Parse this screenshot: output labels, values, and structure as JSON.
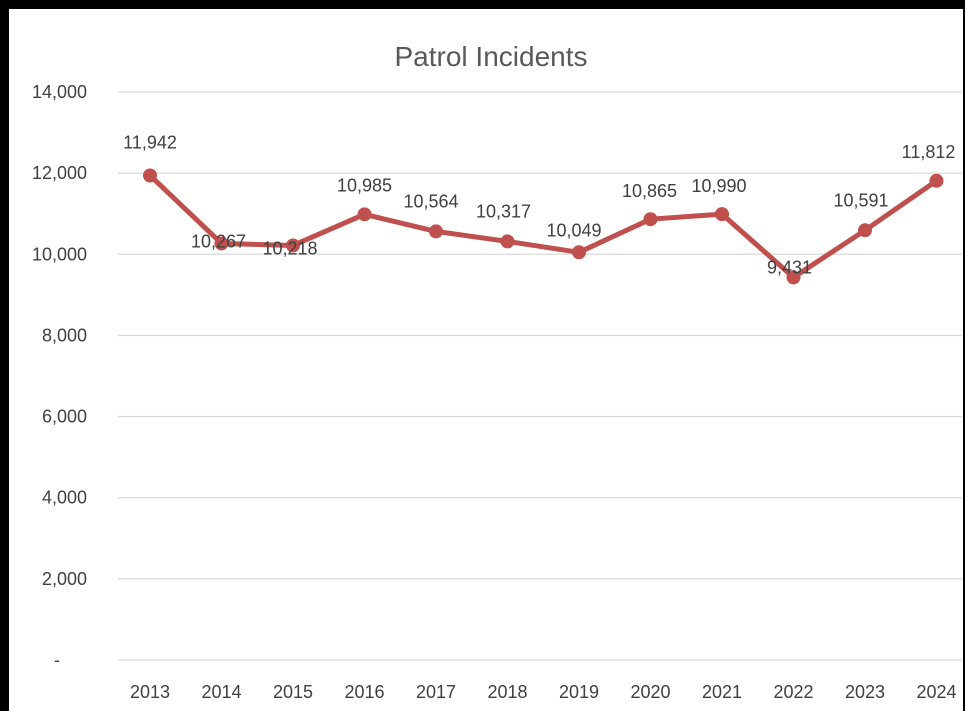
{
  "chart_data": {
    "type": "line",
    "title": "Patrol Incidents",
    "xlabel": "",
    "ylabel": "",
    "categories": [
      "2013",
      "2014",
      "2015",
      "2016",
      "2017",
      "2018",
      "2019",
      "2020",
      "2021",
      "2022",
      "2023",
      "2024"
    ],
    "series": [
      {
        "values": [
          11942,
          10267,
          10218,
          10985,
          10564,
          10317,
          10049,
          10865,
          10990,
          9431,
          10591,
          11812
        ],
        "labels": [
          "11,942",
          "10,267",
          "10,218",
          "10,985",
          "10,564",
          "10,317",
          "10,049",
          "10,865",
          "10,990",
          "9,431",
          "10,591",
          "11,812"
        ],
        "color": "#C0504D"
      }
    ],
    "ylim": [
      0,
      14000
    ],
    "yticks": [
      0,
      2000,
      4000,
      6000,
      8000,
      10000,
      12000,
      14000
    ],
    "ytick_labels": [
      "-",
      "2,000",
      "4,000",
      "6,000",
      "8,000",
      "10,000",
      "12,000",
      "14,000"
    ],
    "grid": true,
    "gridline_color": "#D9D9D9",
    "legend": "none"
  }
}
